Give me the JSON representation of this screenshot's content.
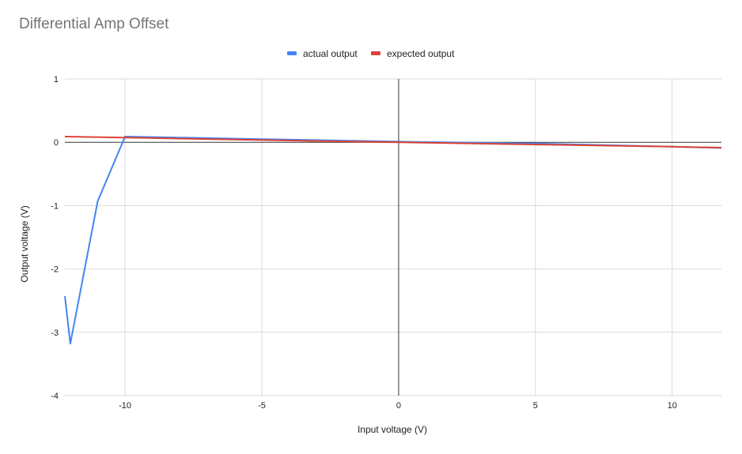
{
  "chart_data": {
    "type": "line",
    "title": "Differential Amp Offset",
    "xlabel": "Input voltage (V)",
    "ylabel": "Output voltage (V)",
    "xlim": [
      -12.2,
      11.8
    ],
    "ylim": [
      -4,
      1
    ],
    "xticks": [
      -10,
      -5,
      0,
      5,
      10
    ],
    "yticks": [
      1,
      0,
      -1,
      -2,
      -3,
      -4
    ],
    "grid": true,
    "legend_position": "top",
    "series": [
      {
        "name": "actual output",
        "color": "#4285f4",
        "x": [
          -12.2,
          -12.0,
          -11.0,
          -10.0,
          -5.0,
          0.0,
          5.0,
          10.0,
          11.8
        ],
        "y": [
          -2.43,
          -3.18,
          -0.93,
          0.09,
          0.05,
          0.01,
          -0.02,
          -0.07,
          -0.09
        ]
      },
      {
        "name": "expected output",
        "color": "#db4437",
        "x": [
          -12.2,
          -10.0,
          -5.0,
          0.0,
          5.0,
          10.0,
          11.8
        ],
        "y": [
          0.09,
          0.075,
          0.035,
          0.0,
          -0.035,
          -0.07,
          -0.085
        ]
      }
    ]
  }
}
